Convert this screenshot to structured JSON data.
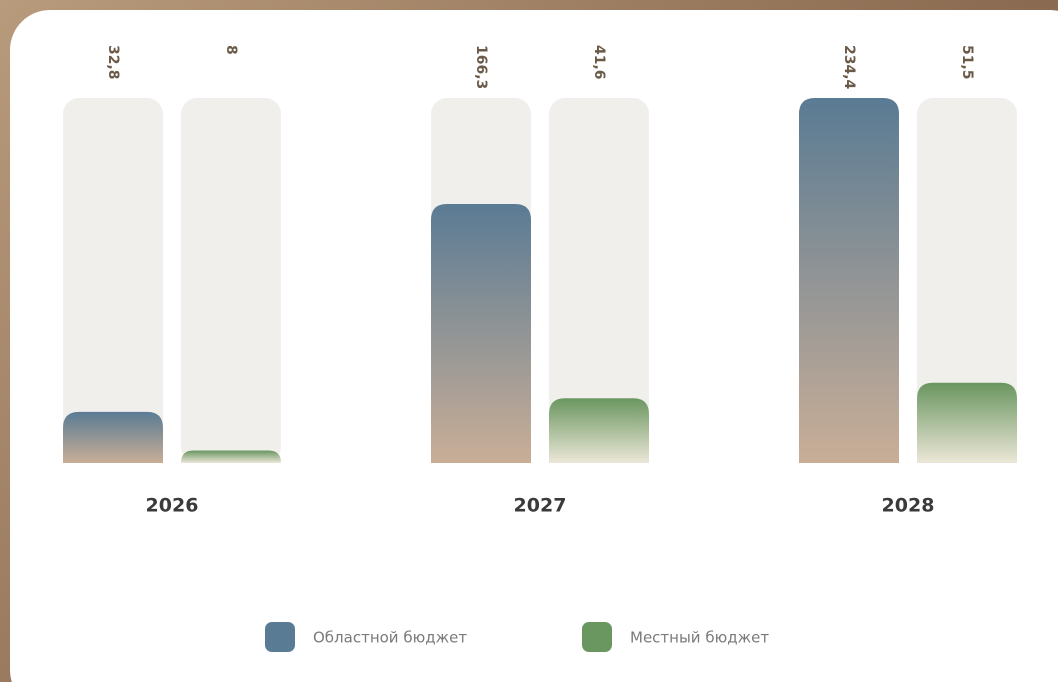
{
  "chart_data": {
    "type": "bar",
    "categories": [
      "2026",
      "2027",
      "2028"
    ],
    "series": [
      {
        "name": "Областной бюджет",
        "color": "#5a7b94",
        "values": [
          32.8,
          166.3,
          234.4
        ],
        "value_labels": [
          "32,8",
          "166,3",
          "234,4"
        ]
      },
      {
        "name": "Местный бюджет",
        "color": "#6a9660",
        "values": [
          8,
          41.6,
          51.5
        ],
        "value_labels": [
          "8",
          "41,6",
          "51,5"
        ]
      }
    ],
    "ylim": [
      0,
      234.4
    ],
    "legend": "bottom"
  }
}
